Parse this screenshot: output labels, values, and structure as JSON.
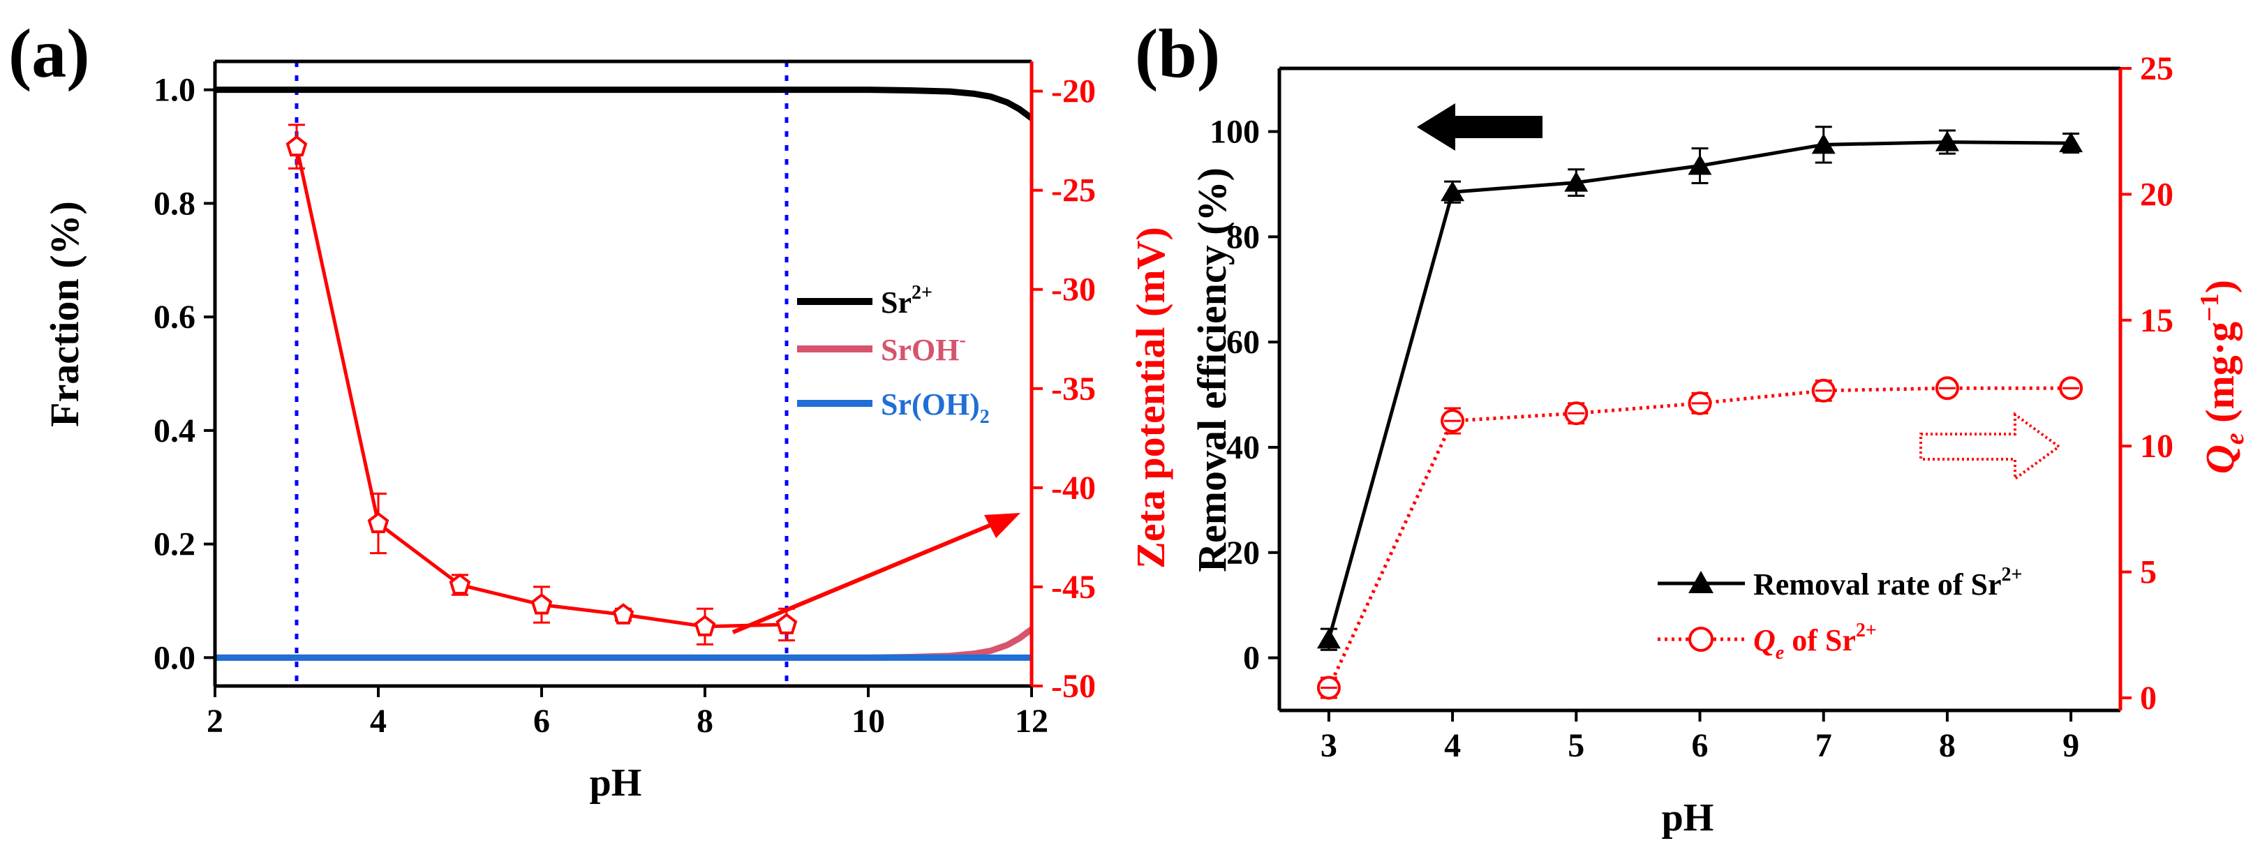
{
  "panels": {
    "a": {
      "label": "(a)"
    },
    "b": {
      "label": "(b)"
    }
  },
  "colors": {
    "black": "#000000",
    "red": "#ff0000",
    "srohplus": "#d6546c",
    "sroh2": "#1f6fd6",
    "vline": "#0000ff"
  },
  "chart_data": [
    {
      "panel": "(a)",
      "type": "line",
      "xlabel": "pH",
      "ylabel": "Fraction (%)",
      "y2label": "Zeta potential (mV)",
      "xlim": [
        2,
        12
      ],
      "ylim": [
        -0.05,
        1.05
      ],
      "y2lim": [
        -50,
        -18.5
      ],
      "xticks": [
        2,
        4,
        6,
        8,
        10,
        12
      ],
      "yticks": [
        0.0,
        0.2,
        0.4,
        0.6,
        0.8,
        1.0
      ],
      "y2ticks": [
        -50,
        -45,
        -40,
        -35,
        -30,
        -25,
        -20
      ],
      "reference_lines_x": [
        3,
        9
      ],
      "series": [
        {
          "name": "Sr²⁺",
          "axis": "left",
          "color": "#000000",
          "x": [
            2,
            3,
            4,
            5,
            6,
            7,
            8,
            9,
            10,
            10.5,
            11,
            11.3,
            11.5,
            11.7,
            11.85,
            12
          ],
          "y": [
            1.0,
            1.0,
            1.0,
            1.0,
            1.0,
            1.0,
            1.0,
            1.0,
            1.0,
            0.999,
            0.997,
            0.993,
            0.988,
            0.978,
            0.966,
            0.95
          ]
        },
        {
          "name": "SrOH⁻",
          "axis": "left",
          "color": "#d6546c",
          "x": [
            2,
            10,
            10.5,
            11,
            11.3,
            11.5,
            11.7,
            11.85,
            12
          ],
          "y": [
            0.0,
            0.0,
            0.001,
            0.003,
            0.007,
            0.012,
            0.022,
            0.034,
            0.05
          ]
        },
        {
          "name": "Sr(OH)₂",
          "axis": "left",
          "color": "#1f6fd6",
          "x": [
            2,
            12
          ],
          "y": [
            0.0,
            0.0
          ]
        },
        {
          "name": "",
          "axis": "right",
          "color": "#ff0000",
          "x": [
            3,
            4,
            5,
            6,
            7,
            8,
            9
          ],
          "y": [
            -22.8,
            -41.8,
            -44.9,
            -45.9,
            -46.4,
            -47.0,
            -46.9
          ],
          "err": [
            1.1,
            1.5,
            0.5,
            0.9,
            0.3,
            0.9,
            0.8
          ]
        }
      ]
    },
    {
      "panel": "(b)",
      "type": "line",
      "xlabel": "pH",
      "ylabel": "Removal efficiency (%)",
      "y2label": "Qe (mg·g−1)",
      "xlim": [
        2.6,
        9.4
      ],
      "ylim": [
        -10,
        112
      ],
      "y2lim": [
        -0.5,
        25
      ],
      "xticks": [
        3,
        4,
        5,
        6,
        7,
        8,
        9
      ],
      "yticks": [
        0,
        20,
        40,
        60,
        80,
        100
      ],
      "y2ticks": [
        0,
        5,
        10,
        15,
        20,
        25
      ],
      "series": [
        {
          "name": "Removal rate of Sr²⁺",
          "axis": "left",
          "color": "#000000",
          "marker": "triangle",
          "x": [
            3,
            4,
            5,
            6,
            7,
            8,
            9
          ],
          "y": [
            3.5,
            88.5,
            90.3,
            93.5,
            97.5,
            98.0,
            97.8
          ],
          "err": [
            2.0,
            2.0,
            2.5,
            3.3,
            3.4,
            2.2,
            1.8
          ]
        },
        {
          "name": "Qe of Sr²⁺",
          "axis": "right",
          "color": "#ff0000",
          "marker": "circle",
          "x": [
            3,
            4,
            5,
            6,
            7,
            8,
            9
          ],
          "y": [
            0.4,
            11.0,
            11.3,
            11.7,
            12.2,
            12.3,
            12.3
          ],
          "err": [
            0.4,
            0.5,
            0.4,
            0.4,
            0.4,
            0.3,
            0.3
          ]
        }
      ]
    }
  ]
}
